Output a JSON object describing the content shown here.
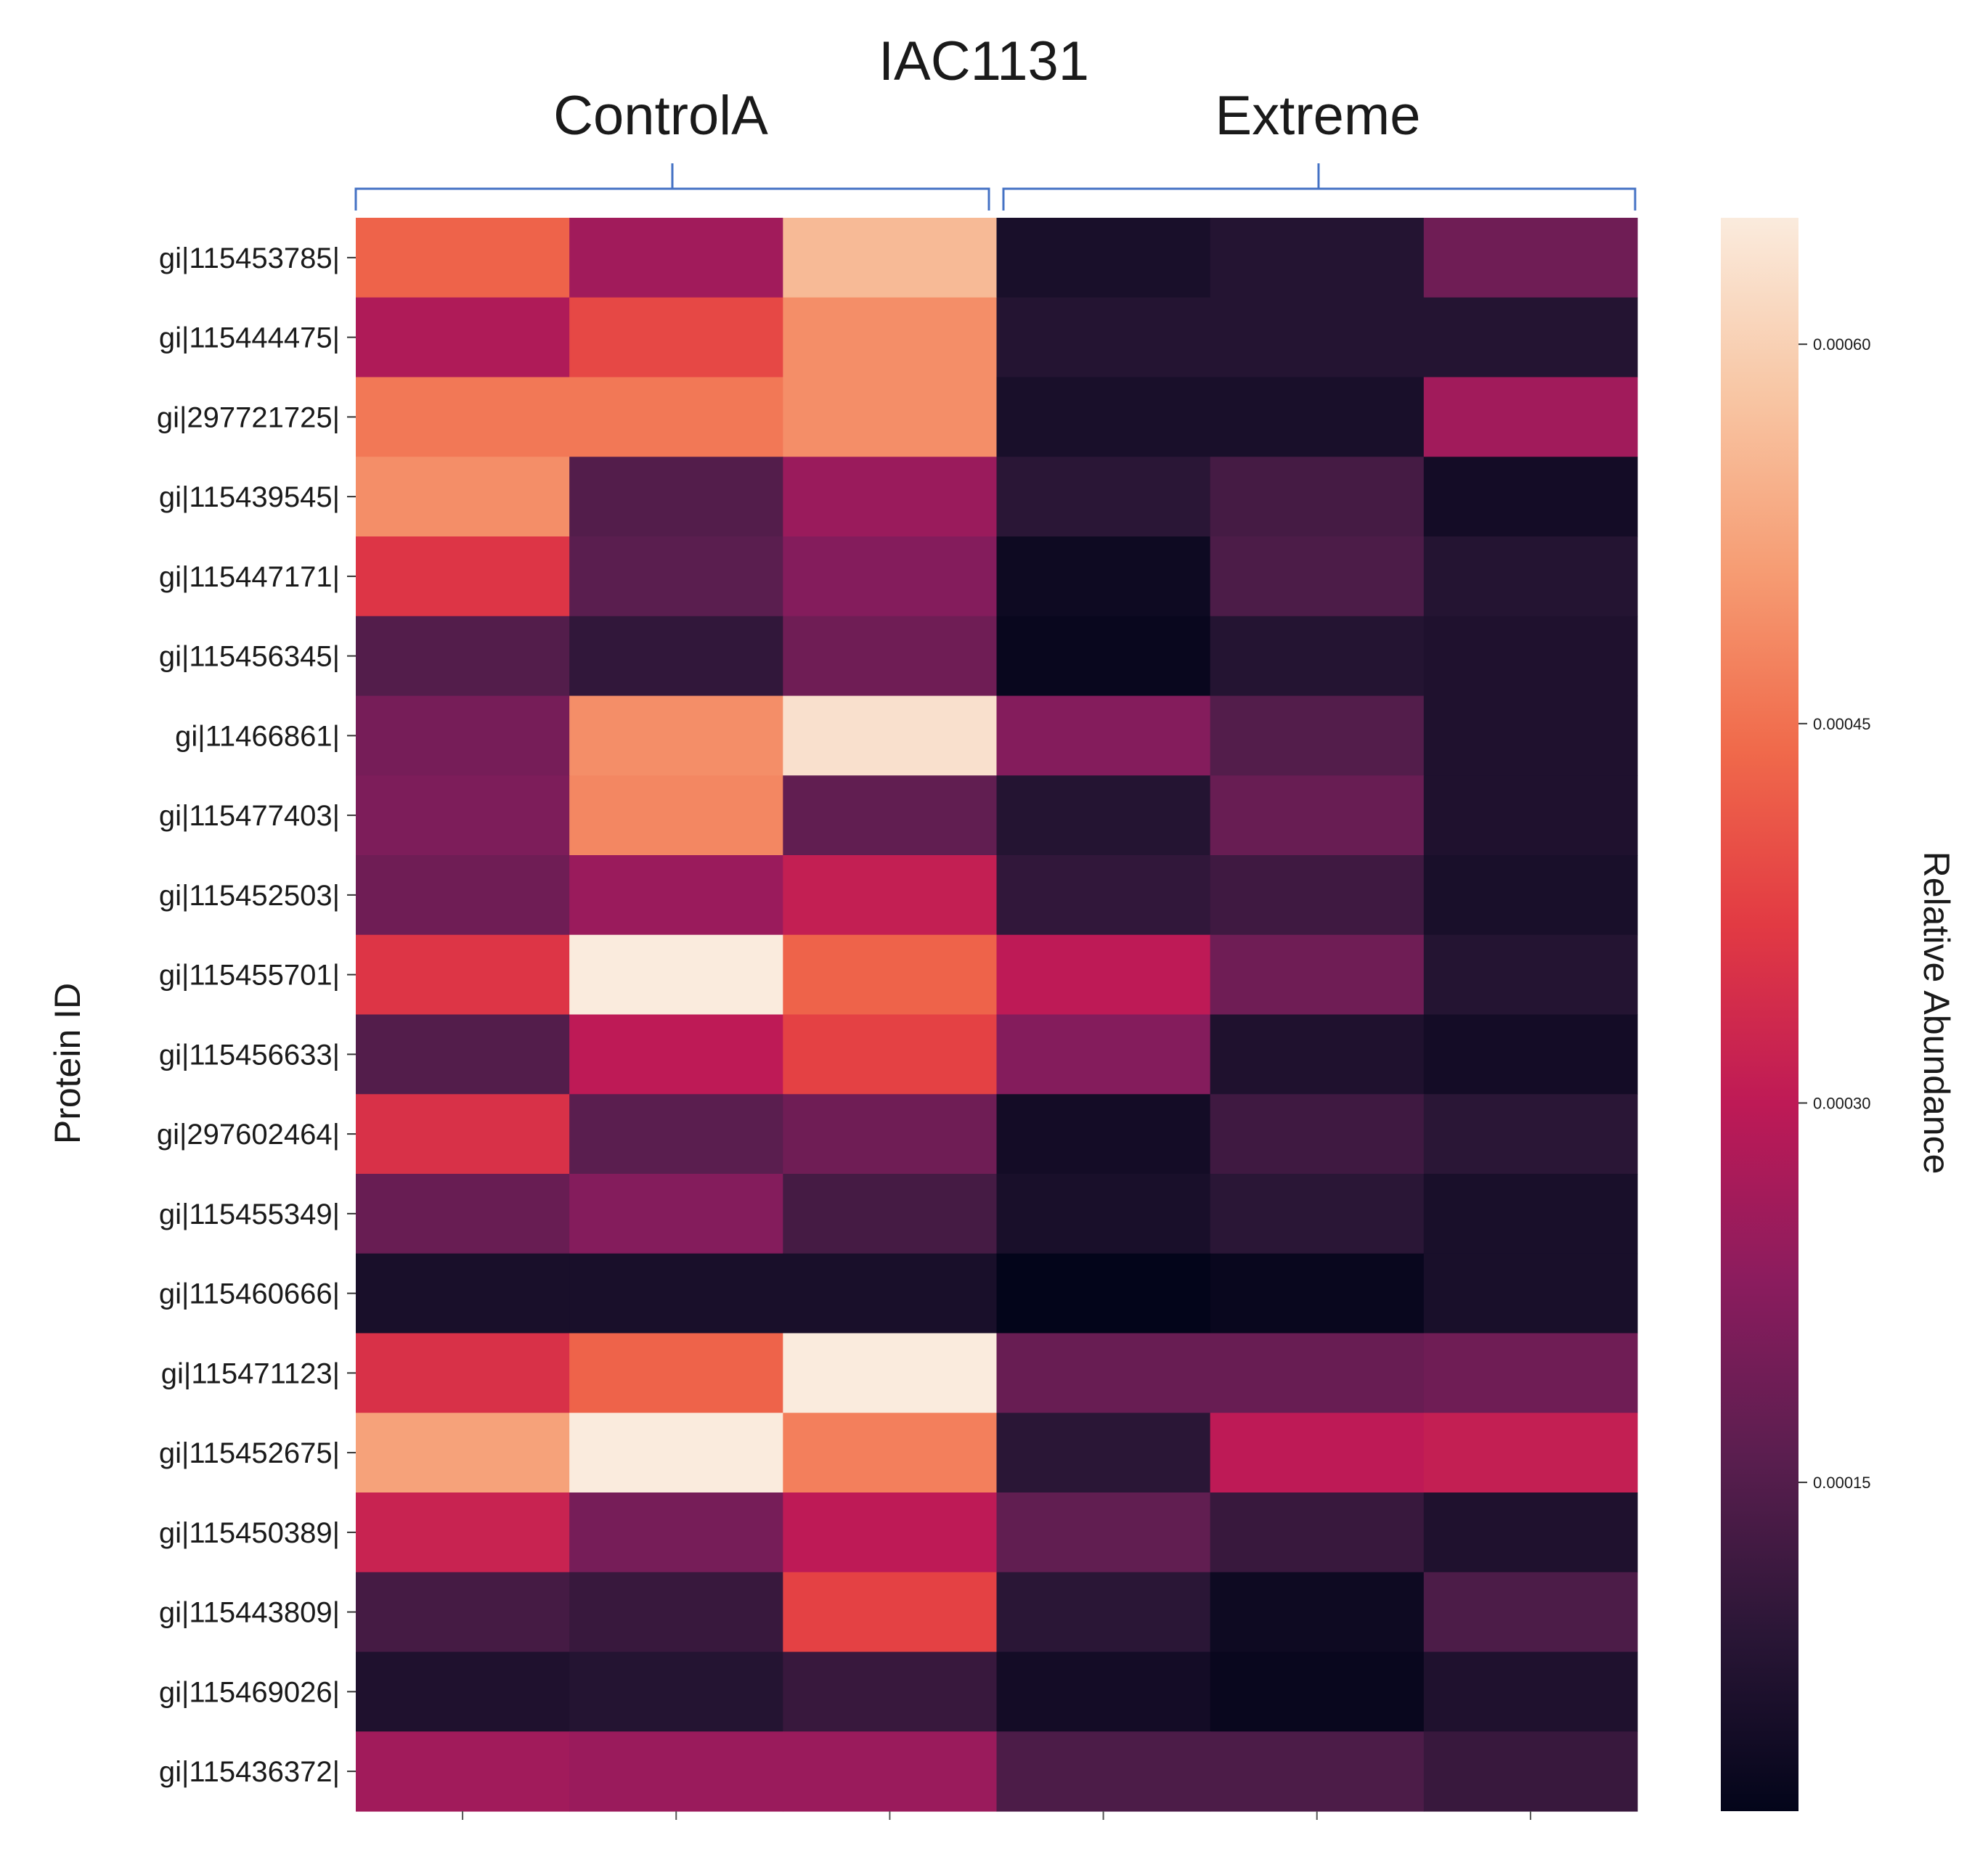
{
  "chart_data": {
    "type": "heatmap",
    "title": "IAC1131",
    "groups": [
      {
        "name": "ControlA",
        "columns": 3
      },
      {
        "name": "Extreme",
        "columns": 3
      }
    ],
    "ylabel": "Protein ID",
    "colorbar_label": "Relative Abundance",
    "colorbar_ticks": [
      "0.00060",
      "0.00045",
      "0.00030",
      "0.00015"
    ],
    "colorbar_tick_values": [
      0.0006,
      0.00045,
      0.0003,
      0.00015
    ],
    "colorbar_range": [
      2e-05,
      0.00065
    ],
    "colormap": [
      "#03051a",
      "#2a1636",
      "#5a1e4f",
      "#8b1c5e",
      "#be1a56",
      "#e23a43",
      "#f06a4b",
      "#f69c73",
      "#f8c6a4",
      "#faebdd"
    ],
    "rows": [
      "gi|115453785|",
      "gi|115444475|",
      "gi|297721725|",
      "gi|115439545|",
      "gi|115447171|",
      "gi|115456345|",
      "gi|11466861|",
      "gi|115477403|",
      "gi|115452503|",
      "gi|115455701|",
      "gi|115456633|",
      "gi|297602464|",
      "gi|115455349|",
      "gi|115460666|",
      "gi|115471123|",
      "gi|115452675|",
      "gi|115450389|",
      "gi|115443809|",
      "gi|115469026|",
      "gi|115436372|"
    ],
    "values": [
      [
        0.00043,
        0.00026,
        0.00056,
        6e-05,
        8e-05,
        0.00019
      ],
      [
        0.00028,
        0.00039,
        0.00049,
        8e-05,
        8e-05,
        8e-05
      ],
      [
        0.00046,
        0.00046,
        0.00049,
        6e-05,
        6e-05,
        0.00026
      ],
      [
        0.00049,
        0.00015,
        0.00025,
        9e-05,
        0.00013,
        5e-05
      ],
      [
        0.00036,
        0.00016,
        0.00022,
        4e-05,
        0.00014,
        8e-05
      ],
      [
        0.00015,
        0.0001,
        0.00019,
        3e-05,
        8e-05,
        7e-05
      ],
      [
        0.0002,
        0.00049,
        0.00063,
        0.00022,
        0.00015,
        7e-05
      ],
      [
        0.00021,
        0.00048,
        0.00017,
        8e-05,
        0.00018,
        7e-05
      ],
      [
        0.00019,
        0.00025,
        0.00031,
        0.0001,
        0.00012,
        6e-05
      ],
      [
        0.00036,
        0.00065,
        0.00043,
        0.0003,
        0.00019,
        8e-05
      ],
      [
        0.00015,
        0.0003,
        0.00038,
        0.00022,
        7e-05,
        5e-05
      ],
      [
        0.00035,
        0.00016,
        0.00019,
        5e-05,
        0.00012,
        9e-05
      ],
      [
        0.00018,
        0.00022,
        0.00013,
        6e-05,
        9e-05,
        6e-05
      ],
      [
        6e-05,
        6e-05,
        6e-05,
        2e-05,
        3e-05,
        6e-05
      ],
      [
        0.00035,
        0.00043,
        0.00065,
        0.00018,
        0.00018,
        0.00019
      ],
      [
        0.00052,
        0.00065,
        0.00047,
        9e-05,
        0.0003,
        0.00031
      ],
      [
        0.00032,
        0.0002,
        0.0003,
        0.00017,
        0.00011,
        7e-05
      ],
      [
        0.00013,
        0.00011,
        0.00038,
        9e-05,
        4e-05,
        0.00014
      ],
      [
        7e-05,
        8e-05,
        0.00011,
        5e-05,
        3e-05,
        7e-05
      ],
      [
        0.00026,
        0.00025,
        0.00025,
        0.00014,
        0.00014,
        0.00011
      ]
    ]
  }
}
